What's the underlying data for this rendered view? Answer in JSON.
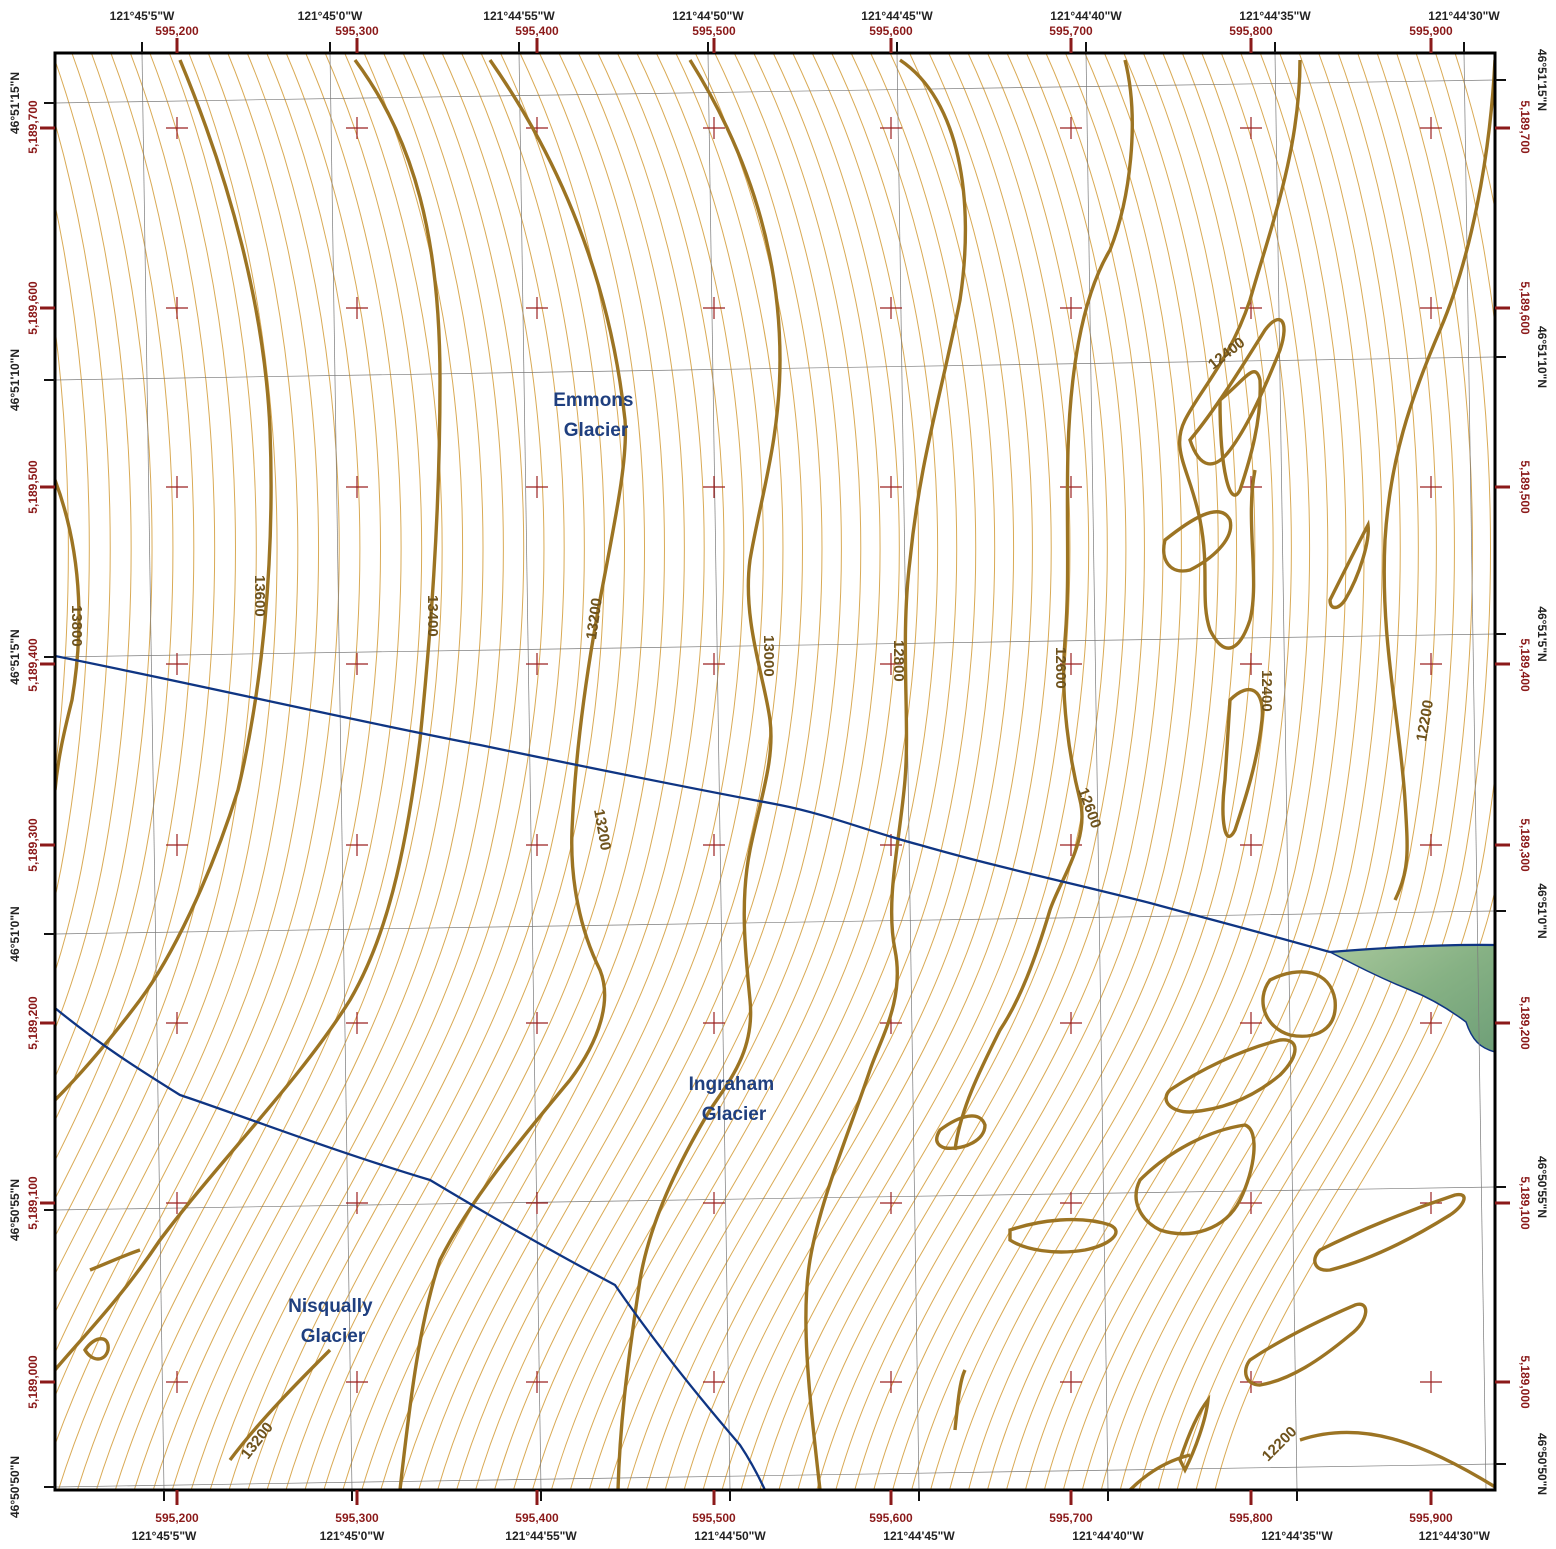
{
  "map": {
    "top_lon_labels": [
      "121°45'5\"W",
      "121°45'0\"W",
      "121°44'55\"W",
      "121°44'50\"W",
      "121°44'45\"W",
      "121°44'40\"W",
      "121°44'35\"W",
      "121°44'30\"W"
    ],
    "bottom_lon_labels": [
      "121°45'5\"W",
      "121°45'0\"W",
      "121°44'55\"W",
      "121°44'50\"W",
      "121°44'45\"W",
      "121°44'40\"W",
      "121°44'35\"W",
      "121°44'30\"W"
    ],
    "easting_labels": [
      "595,200",
      "595,300",
      "595,400",
      "595,500",
      "595,600",
      "595,700",
      "595,800",
      "595,900"
    ],
    "left_lat_labels": [
      "46°51'15\"N",
      "46°51'10\"N",
      "46°51'5\"N",
      "46°51'0\"N",
      "46°50'55\"N",
      "46°50'50\"N"
    ],
    "right_lat_labels": [
      "46°51'15\"N",
      "46°51'10\"N",
      "46°51'5\"N",
      "46°51'0\"N",
      "46°50'55\"N",
      "46°50'50\"N"
    ],
    "northing_labels": [
      "5,189,700",
      "5,189,600",
      "5,189,500",
      "5,189,400",
      "5,189,300",
      "5,189,200",
      "5,189,100",
      "5,189,000"
    ],
    "glaciers": {
      "emmons": [
        "Emmons",
        "Glacier"
      ],
      "ingraham": [
        "Ingraham",
        "Glacier"
      ],
      "nisqually": [
        "Nisqually",
        "Glacier"
      ]
    },
    "contour_labels": [
      "13800",
      "13600",
      "13400",
      "13200",
      "13000",
      "12800",
      "12600",
      "12400",
      "12200",
      "13200",
      "12600",
      "12400",
      "13200",
      "12200"
    ],
    "colors": {
      "index_contour": "#9c7423",
      "minor_contour": "#d9aa55",
      "boundary": "#0f3583",
      "glacier_label": "#1f3f7f",
      "utm_label": "#8b1a1a",
      "rock": "#8fb58a"
    }
  }
}
